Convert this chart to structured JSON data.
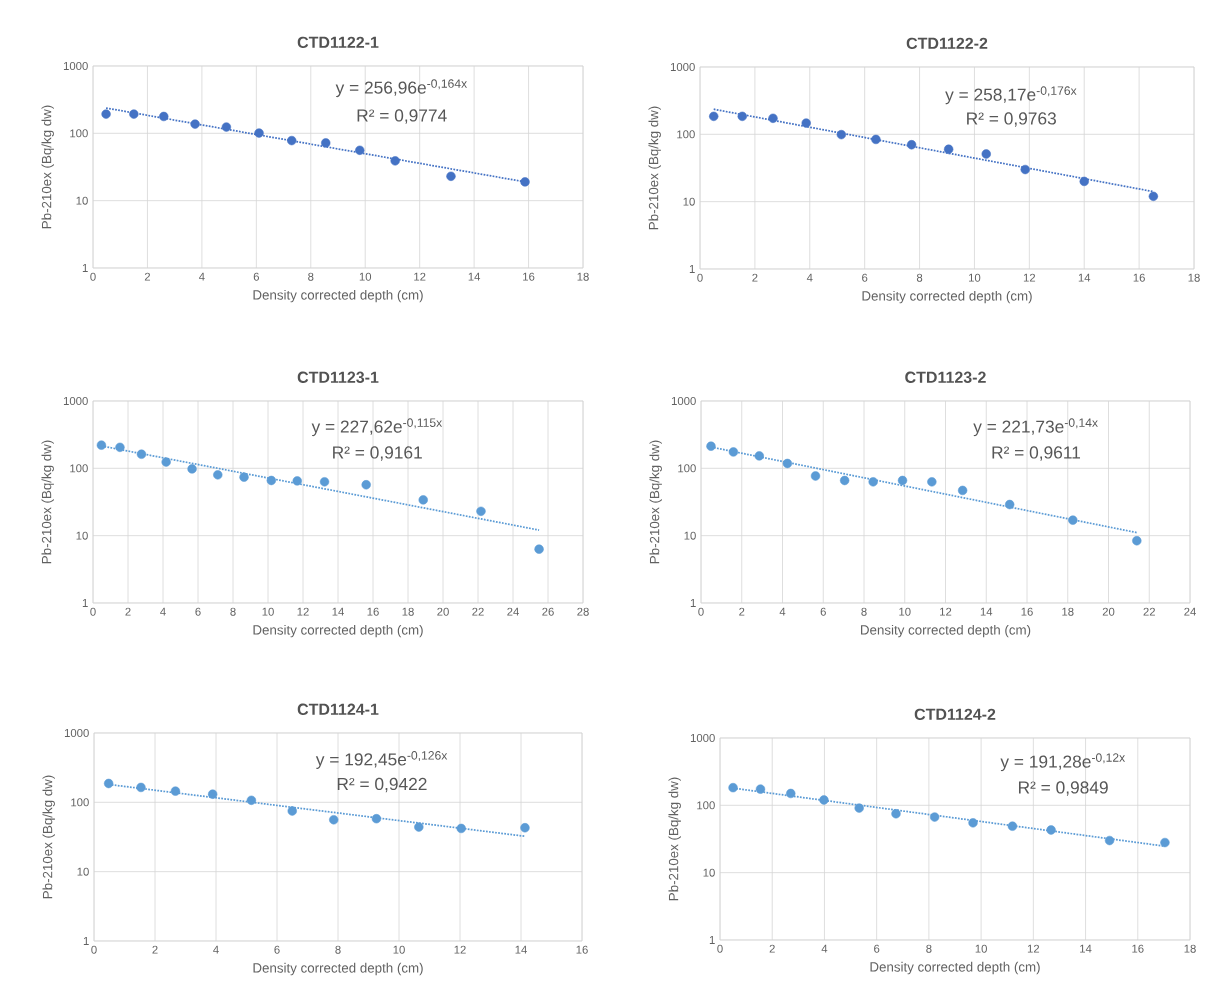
{
  "chart_data": [
    {
      "type": "scatter",
      "title": "CTD1122-1",
      "xlabel": "Density corrected depth (cm)",
      "ylabel": "Pb-210ex (Bq/kg dw)",
      "log": "y",
      "grid": true,
      "marker": "circle",
      "xlim": [
        0,
        18
      ],
      "xticks": [
        0,
        2,
        4,
        6,
        8,
        10,
        12,
        14,
        16,
        18
      ],
      "ylim": [
        1,
        1000
      ],
      "yticks": [
        1,
        10,
        100,
        1000
      ],
      "annotations": [
        "y = 256,96e$^{-0,164x}$",
        "R² = 0,9774"
      ],
      "series": [
        {
          "color": "#4472c4",
          "x": [
            0.48,
            1.5,
            2.6,
            3.75,
            4.9,
            6.1,
            7.3,
            8.55,
            9.8,
            11.1,
            13.15,
            15.87
          ],
          "values": [
            193,
            193,
            178,
            137,
            124,
            101,
            78,
            72,
            56,
            39,
            23,
            19
          ]
        },
        {
          "type": "line",
          "color": "#4472c4",
          "line_style": "dotted",
          "marker": "none",
          "x": [
            0.48,
            15.87
          ],
          "values": [
            237.5,
            19.0
          ]
        }
      ]
    },
    {
      "type": "scatter",
      "title": "CTD1122-2",
      "xlabel": "Density corrected depth (cm)",
      "ylabel": "Pb-210ex (Bq/kg dw)",
      "log": "y",
      "grid": true,
      "marker": "circle",
      "xlim": [
        0,
        18
      ],
      "xticks": [
        0,
        2,
        4,
        6,
        8,
        10,
        12,
        14,
        16,
        18
      ],
      "ylim": [
        1,
        1000
      ],
      "yticks": [
        1,
        10,
        100,
        1000
      ],
      "annotations": [
        "y = 258,17e$^{-0,176x}$",
        "R² = 0,9763"
      ],
      "series": [
        {
          "color": "#4472c4",
          "x": [
            0.5,
            1.54,
            2.66,
            3.87,
            5.15,
            6.41,
            7.71,
            9.06,
            10.43,
            11.85,
            14.0,
            16.52
          ],
          "values": [
            185,
            185,
            173,
            147,
            99,
            84,
            70,
            60,
            51,
            30,
            20,
            12
          ]
        },
        {
          "type": "line",
          "color": "#4472c4",
          "line_style": "dotted",
          "marker": "none",
          "x": [
            0.5,
            16.52
          ],
          "values": [
            236,
            14.1
          ]
        }
      ]
    },
    {
      "type": "scatter",
      "title": "CTD1123-1",
      "xlabel": "Density corrected depth (cm)",
      "ylabel": "Pb-210ex (Bq/kg dw)",
      "log": "y",
      "grid": true,
      "marker": "circle",
      "xlim": [
        0,
        28
      ],
      "xticks": [
        0,
        2,
        4,
        6,
        8,
        10,
        12,
        14,
        16,
        18,
        20,
        22,
        24,
        26,
        28
      ],
      "ylim": [
        1,
        1000
      ],
      "yticks": [
        1,
        10,
        100,
        1000
      ],
      "annotations": [
        "y = 227,62e$^{-0,115x}$",
        "R² = 0,9161"
      ],
      "series": [
        {
          "color": "#5b9bd5",
          "x": [
            0.48,
            1.54,
            2.77,
            4.18,
            5.66,
            7.13,
            8.63,
            10.19,
            11.67,
            13.23,
            15.61,
            18.87,
            22.17,
            25.49
          ],
          "values": [
            221,
            205,
            162,
            124,
            98,
            80,
            74,
            66,
            65,
            63,
            57,
            34,
            23,
            6.3
          ]
        },
        {
          "type": "line",
          "color": "#5b9bd5",
          "line_style": "dotted",
          "marker": "none",
          "x": [
            0.48,
            25.49
          ],
          "values": [
            215,
            12.1
          ]
        }
      ]
    },
    {
      "type": "scatter",
      "title": "CTD1123-2",
      "xlabel": "Density corrected depth (cm)",
      "ylabel": "Pb-210ex (Bq/kg dw)",
      "log": "y",
      "grid": true,
      "marker": "circle",
      "xlim": [
        0,
        24
      ],
      "xticks": [
        0,
        2,
        4,
        6,
        8,
        10,
        12,
        14,
        16,
        18,
        20,
        22,
        24
      ],
      "ylim": [
        1,
        1000
      ],
      "yticks": [
        1,
        10,
        100,
        1000
      ],
      "annotations": [
        "y = 221,73e$^{-0,14x}$",
        "R² = 0,9611"
      ],
      "series": [
        {
          "color": "#5b9bd5",
          "x": [
            0.49,
            1.59,
            2.86,
            4.24,
            5.62,
            7.05,
            8.45,
            9.89,
            11.33,
            12.84,
            15.15,
            18.25,
            21.39
          ],
          "values": [
            213,
            175,
            153,
            118,
            77,
            66,
            63,
            66,
            63,
            47,
            29,
            17,
            8.4
          ]
        },
        {
          "type": "line",
          "color": "#5b9bd5",
          "line_style": "dotted",
          "marker": "none",
          "x": [
            0.49,
            21.39
          ],
          "values": [
            207,
            11.1
          ]
        }
      ]
    },
    {
      "type": "scatter",
      "title": "CTD1124-1",
      "xlabel": "Density corrected depth (cm)",
      "ylabel": "Pb-210ex (Bq/kg dw)",
      "log": "y",
      "grid": true,
      "marker": "circle",
      "xlim": [
        0,
        16
      ],
      "xticks": [
        0,
        2,
        4,
        6,
        8,
        10,
        12,
        14,
        16
      ],
      "ylim": [
        1,
        1000
      ],
      "yticks": [
        1,
        10,
        100,
        1000
      ],
      "annotations": [
        "y = 192,45e$^{-0,126x}$",
        "R² = 0,9422"
      ],
      "series": [
        {
          "color": "#5b9bd5",
          "x": [
            0.48,
            1.54,
            2.67,
            3.89,
            5.16,
            6.5,
            7.86,
            9.26,
            10.65,
            12.04,
            14.13
          ],
          "values": [
            187,
            164,
            145,
            131,
            107,
            75,
            56,
            58,
            44,
            42,
            43
          ]
        },
        {
          "type": "line",
          "color": "#5b9bd5",
          "line_style": "dotted",
          "marker": "none",
          "x": [
            0.48,
            14.13
          ],
          "values": [
            181,
            32.4
          ]
        }
      ]
    },
    {
      "type": "scatter",
      "title": "CTD1124-2",
      "xlabel": "Density corrected depth (cm)",
      "ylabel": "Pb-210ex (Bq/kg dw)",
      "log": "y",
      "grid": true,
      "marker": "circle",
      "xlim": [
        0,
        18
      ],
      "xticks": [
        0,
        2,
        4,
        6,
        8,
        10,
        12,
        14,
        16,
        18
      ],
      "ylim": [
        1,
        1000
      ],
      "yticks": [
        1,
        10,
        100,
        1000
      ],
      "annotations": [
        "y = 191,28e$^{-0,12x}$",
        "R² = 0,9849"
      ],
      "series": [
        {
          "color": "#5b9bd5",
          "x": [
            0.5,
            1.55,
            2.71,
            3.98,
            5.33,
            6.74,
            8.22,
            9.69,
            11.2,
            12.68,
            14.92,
            17.04
          ],
          "values": [
            183,
            174,
            150,
            120,
            91,
            75,
            67,
            55,
            49,
            43,
            30,
            28
          ]
        },
        {
          "type": "line",
          "color": "#5b9bd5",
          "line_style": "dotted",
          "marker": "none",
          "x": [
            0.5,
            17.04
          ],
          "values": [
            180,
            24.7
          ]
        }
      ]
    }
  ]
}
